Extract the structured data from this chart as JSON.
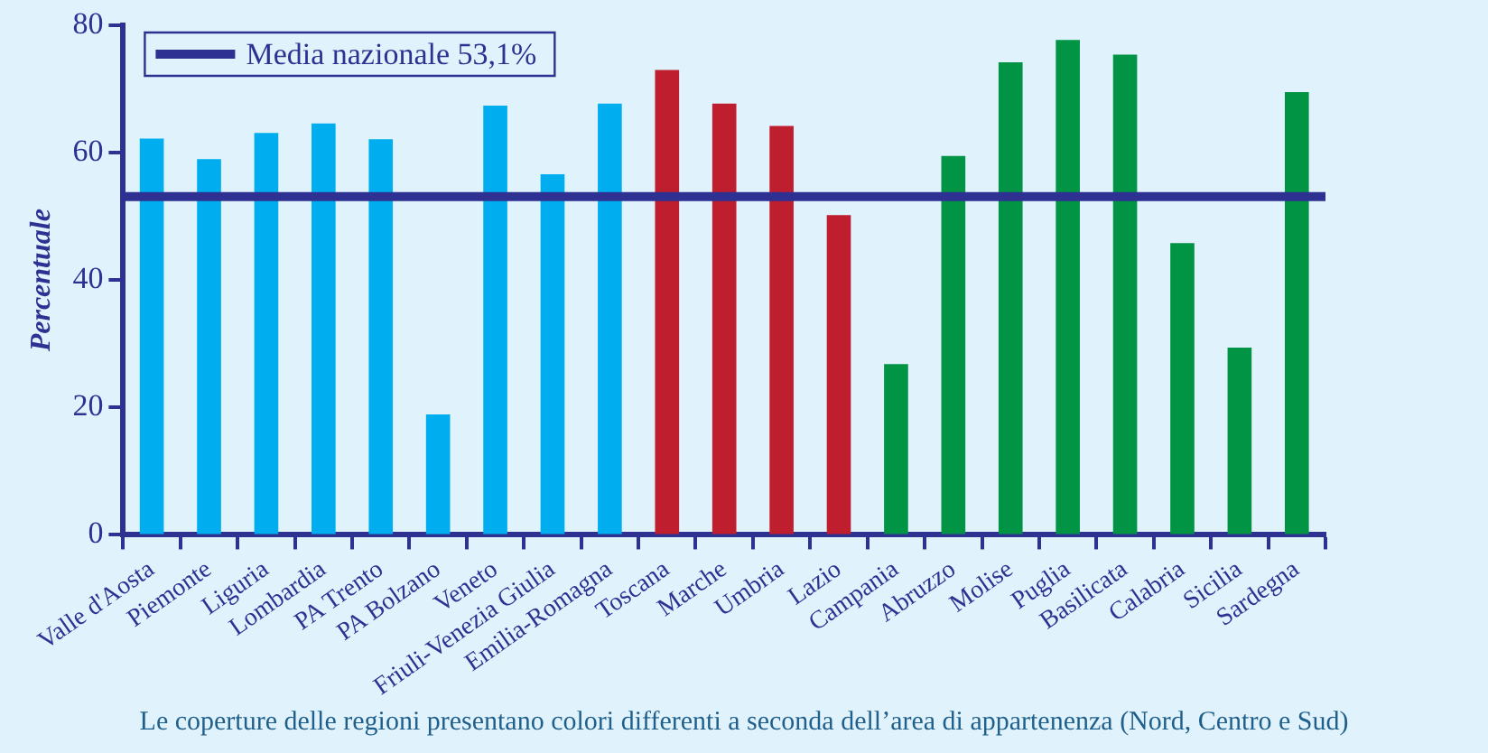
{
  "chart_data": {
    "type": "bar",
    "ylabel": "Percentuale",
    "categories": [
      "Valle d'Aosta",
      "Piemonte",
      "Liguria",
      "Lombardia",
      "PA Trento",
      "PA Bolzano",
      "Veneto",
      "Friuli-Venezia Giulia",
      "Emilia-Romagna",
      "Toscana",
      "Marche",
      "Umbria",
      "Lazio",
      "Campania",
      "Abruzzo",
      "Molise",
      "Puglia",
      "Basilicata",
      "Calabria",
      "Sicilia",
      "Sardegna"
    ],
    "values": [
      62.2,
      59.0,
      63.1,
      64.6,
      62.1,
      18.9,
      67.4,
      56.6,
      67.7,
      73.0,
      67.7,
      64.2,
      50.2,
      26.8,
      59.5,
      74.2,
      77.7,
      75.4,
      45.8,
      29.4,
      69.5
    ],
    "colors": [
      "#00aeef",
      "#00aeef",
      "#00aeef",
      "#00aeef",
      "#00aeef",
      "#00aeef",
      "#00aeef",
      "#00aeef",
      "#00aeef",
      "#be1e2d",
      "#be1e2d",
      "#be1e2d",
      "#be1e2d",
      "#009444",
      "#009444",
      "#009444",
      "#009444",
      "#009444",
      "#009444",
      "#009444",
      "#009444"
    ],
    "ylim": [
      0,
      80
    ],
    "yticks": [
      0,
      20,
      40,
      60,
      80
    ],
    "grid": false,
    "legend": "top left",
    "ref_lines": [
      {
        "axis": "y",
        "value": 53.1,
        "label": "Media nazionale 53,1%",
        "color": "#2e3192"
      }
    ],
    "annotations": [
      "Le coperture delle regioni presentano colori differenti a seconda dell’area di appartenenza (Nord, Centro e Sud)"
    ]
  }
}
